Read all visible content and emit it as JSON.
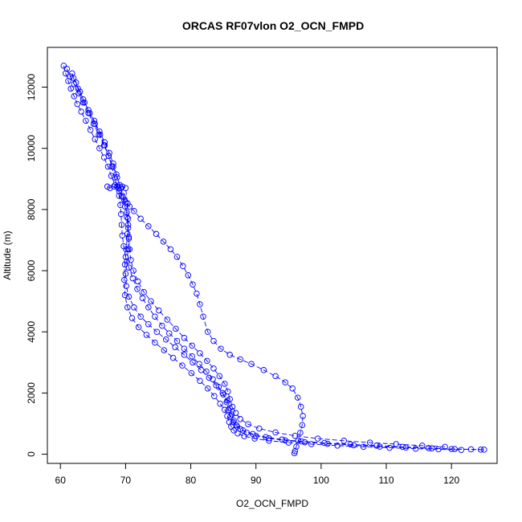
{
  "chart_data": {
    "type": "scatter",
    "title": "ORCAS RF07vlon O2_OCN_FMPD",
    "xlabel": "O2_OCN_FMPD",
    "ylabel": "Altitude (m)",
    "xlim": [
      58,
      127
    ],
    "ylim": [
      -300,
      13300
    ],
    "x_ticks": [
      60,
      70,
      80,
      90,
      100,
      110,
      120
    ],
    "y_ticks": [
      0,
      2000,
      4000,
      6000,
      8000,
      10000,
      12000
    ],
    "grid": false,
    "legend": "none",
    "marker": "open circle",
    "line_style": "dashed",
    "color": "#0000ff",
    "series": [
      {
        "x": [
          60.5,
          60.8,
          61.2,
          61.6,
          62.1,
          62.6,
          63.2,
          63.9,
          64.6,
          65.3,
          66.0,
          66.7,
          67.3,
          67.8,
          68.4,
          69.0,
          69.6,
          70.0,
          70.6,
          71.3,
          72.3,
          73.5,
          74.7,
          75.8,
          76.9,
          77.9,
          78.8,
          79.6,
          80.3,
          80.9,
          81.4,
          81.9,
          82.6,
          83.5,
          84.6,
          86.0,
          87.6,
          89.3,
          91.2,
          93.0,
          94.5,
          95.6,
          96.4,
          96.9,
          97.2,
          97.1,
          96.8,
          96.5,
          96.2,
          96.0,
          95.9
        ],
        "y": [
          12700,
          12450,
          12200,
          11950,
          11700,
          11450,
          11200,
          10900,
          10600,
          10300,
          10000,
          9700,
          9400,
          9100,
          8800,
          8600,
          8400,
          8250,
          8100,
          7950,
          7700,
          7450,
          7200,
          6950,
          6700,
          6450,
          6150,
          5850,
          5550,
          5250,
          4900,
          4500,
          4000,
          3700,
          3450,
          3250,
          3100,
          2950,
          2750,
          2550,
          2350,
          2150,
          1850,
          1550,
          1250,
          950,
          700,
          450,
          250,
          100,
          30
        ]
      },
      {
        "x": [
          61.0,
          61.5,
          62.1,
          62.8,
          63.5,
          64.3,
          65.1,
          65.9,
          66.7,
          67.4,
          68.1,
          68.7,
          69.3,
          69.8,
          70.2,
          70.4,
          70.5,
          70.4,
          70.2,
          70.0,
          70.1,
          70.5,
          71.3,
          72.3,
          73.5,
          74.8,
          76.2,
          77.6,
          79.0,
          80.3,
          81.6,
          82.8,
          83.9,
          84.9,
          85.6,
          86.0,
          86.3,
          86.6,
          87.0,
          87.6,
          88.6,
          90.0,
          92.0,
          94.5,
          97.5,
          101.0,
          105.0,
          109.0,
          113.0,
          117.0,
          120.5,
          123.0,
          125.0
        ],
        "y": [
          12600,
          12350,
          12100,
          11800,
          11500,
          11150,
          10800,
          10450,
          10100,
          9750,
          9400,
          9050,
          8700,
          8300,
          7900,
          7500,
          7100,
          6700,
          6300,
          5900,
          5500,
          5150,
          4800,
          4500,
          4250,
          4000,
          3750,
          3500,
          3250,
          3000,
          2750,
          2500,
          2250,
          2000,
          1750,
          1500,
          1300,
          1100,
          950,
          820,
          700,
          600,
          520,
          450,
          390,
          340,
          290,
          250,
          220,
          190,
          170,
          160,
          150
        ]
      },
      {
        "x": [
          61.8,
          62.4,
          63.0,
          63.7,
          64.5,
          65.3,
          66.1,
          66.8,
          67.4,
          67.9,
          68.3,
          68.7,
          69.0,
          69.2,
          69.3,
          69.4,
          69.5,
          69.7,
          70.0,
          70.5,
          71.1,
          71.8,
          72.6,
          73.5,
          74.5,
          75.6,
          76.7,
          77.9,
          79.0,
          80.2,
          81.3,
          82.4,
          83.4,
          84.3,
          85.0,
          85.5,
          85.8,
          86.1,
          86.5,
          87.1,
          88.0,
          89.5,
          91.5,
          94.0,
          97.0,
          100.5,
          104.5,
          108.5,
          112.5,
          116.5,
          120.0,
          124.5
        ],
        "y": [
          12450,
          12150,
          11850,
          11500,
          11150,
          10800,
          10450,
          10100,
          9750,
          9400,
          9050,
          8750,
          8450,
          8150,
          7850,
          7500,
          7150,
          6800,
          6450,
          6100,
          5750,
          5400,
          5100,
          4800,
          4500,
          4200,
          3950,
          3700,
          3450,
          3200,
          2950,
          2700,
          2450,
          2200,
          1950,
          1700,
          1450,
          1250,
          1050,
          900,
          780,
          660,
          560,
          480,
          420,
          370,
          320,
          280,
          240,
          200,
          170,
          150
        ]
      },
      {
        "x": [
          62.0,
          62.7,
          63.5,
          64.3,
          65.2,
          66.0,
          66.8,
          67.5,
          68.1,
          68.6,
          69.1,
          69.5,
          69.9,
          70.2,
          70.4,
          70.5,
          70.6,
          70.8,
          71.2,
          71.9,
          72.8,
          73.9,
          75.1,
          76.4,
          77.7,
          79.0,
          80.2,
          81.4,
          82.5,
          83.5,
          84.4,
          85.2,
          85.7,
          86.0,
          86.4,
          86.9,
          87.6,
          88.8,
          90.5,
          93.0,
          96.0,
          99.5,
          103.5,
          107.5,
          111.5,
          115.5,
          119.0
        ],
        "y": [
          12300,
          11950,
          11600,
          11250,
          10900,
          10550,
          10200,
          9850,
          9500,
          9150,
          8800,
          8450,
          8100,
          7750,
          7400,
          7050,
          6700,
          6350,
          6000,
          5650,
          5300,
          5000,
          4700,
          4400,
          4100,
          3800,
          3550,
          3300,
          3050,
          2800,
          2550,
          2300,
          2050,
          1800,
          1550,
          1350,
          1150,
          980,
          840,
          710,
          600,
          510,
          440,
          380,
          330,
          280,
          240
        ]
      },
      {
        "x": [
          67.2,
          67.6,
          68.2,
          68.9,
          69.5,
          70.0,
          70.3,
          70.4,
          70.3,
          70.1,
          69.9,
          69.8,
          69.9,
          70.3,
          71.0,
          72.0,
          73.2,
          74.5,
          75.9,
          77.3,
          78.7,
          80.1,
          81.4,
          82.6,
          83.6,
          84.5,
          85.2,
          85.6,
          85.9,
          86.2,
          86.6,
          87.2,
          88.2,
          89.8,
          92.0,
          95.0,
          98.5,
          102.5,
          106.5,
          110.5,
          114.5,
          118.0,
          121.5
        ],
        "y": [
          8750,
          8700,
          8750,
          8700,
          8750,
          8700,
          8200,
          7700,
          7200,
          6700,
          6200,
          5700,
          5200,
          4800,
          4450,
          4150,
          3900,
          3650,
          3400,
          3150,
          2900,
          2650,
          2400,
          2150,
          1900,
          1650,
          1450,
          1250,
          1050,
          900,
          780,
          680,
          590,
          510,
          440,
          380,
          330,
          280,
          240,
          210,
          180,
          160,
          140
        ]
      }
    ]
  }
}
